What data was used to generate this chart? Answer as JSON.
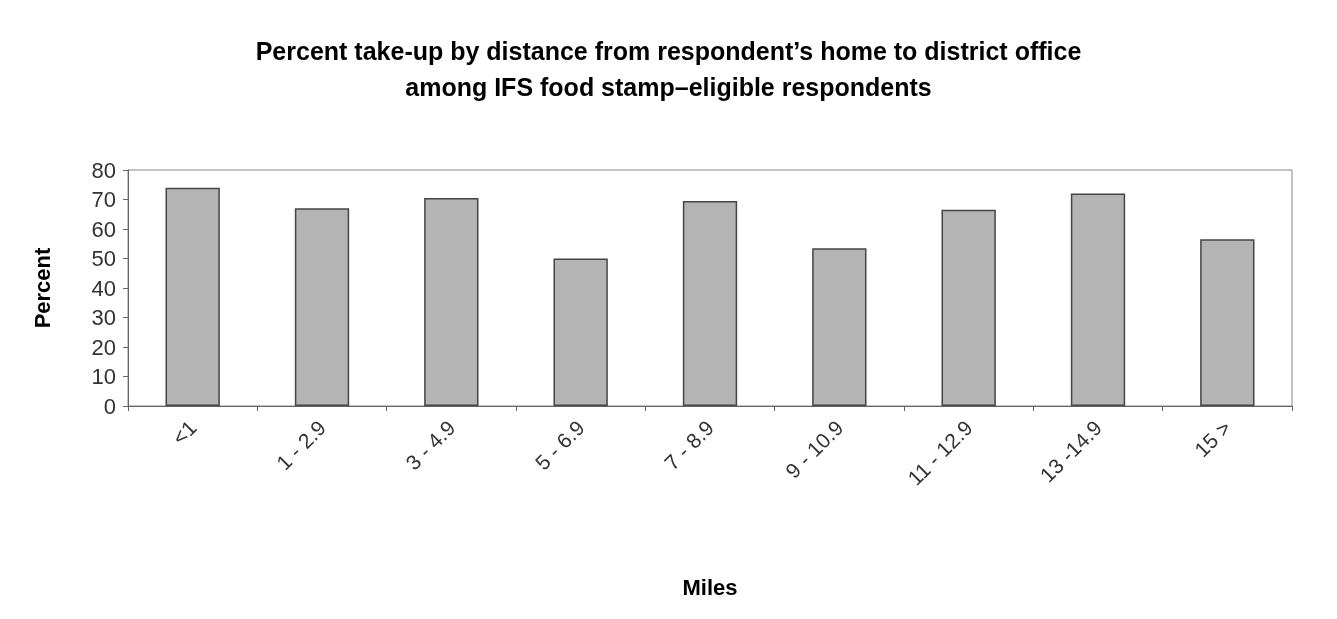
{
  "chart_data": {
    "type": "bar",
    "title": "Percent take-up by distance from respondent’s home to district office\namong IFS food stamp–eligible respondents",
    "xlabel": "Miles",
    "ylabel": "Percent",
    "categories": [
      "<1",
      "1 - 2.9",
      "3 - 4.9",
      "5 - 6.9",
      "7 - 8.9",
      "9 - 10.9",
      "11 - 12.9",
      "13 -14.9",
      "15 >"
    ],
    "values": [
      74,
      67,
      70.5,
      50,
      69.5,
      53.5,
      66.5,
      72,
      56.5
    ],
    "color": "#b4b4b4",
    "ylim": [
      0,
      80
    ],
    "yticks": [
      0,
      10,
      20,
      30,
      40,
      50,
      60,
      70,
      80
    ],
    "grid": false
  }
}
